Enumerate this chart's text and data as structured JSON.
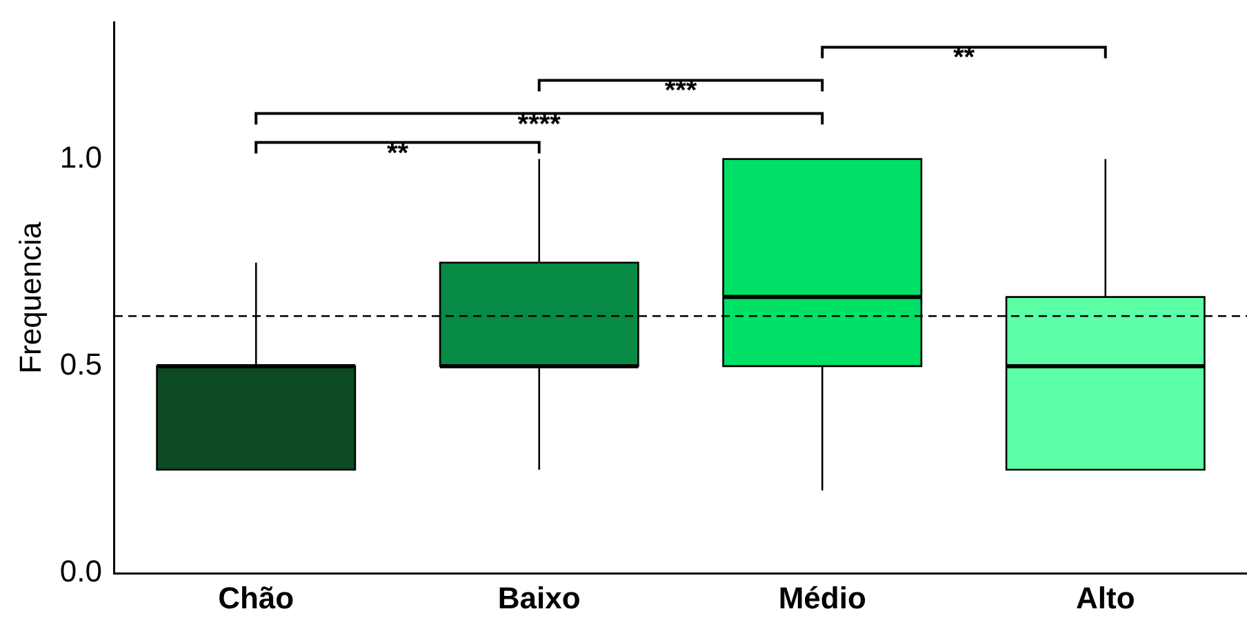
{
  "chart_data": {
    "type": "box",
    "ylabel": "Frequencia",
    "categories": [
      "Chão",
      "Baixo",
      "Médio",
      "Alto"
    ],
    "colors": [
      "#0b4a22",
      "#078a44",
      "#00e066",
      "#5cffa8"
    ],
    "boxes": [
      {
        "low": 0.25,
        "q1": 0.25,
        "median": 0.5,
        "q3": 0.5,
        "high": 0.75
      },
      {
        "low": 0.25,
        "q1": 0.5,
        "median": 0.5,
        "q3": 0.75,
        "high": 1.0
      },
      {
        "low": 0.2,
        "q1": 0.5,
        "median": 0.667,
        "q3": 1.0,
        "high": 1.0
      },
      {
        "low": 0.25,
        "q1": 0.25,
        "median": 0.5,
        "q3": 0.667,
        "high": 1.0
      }
    ],
    "ylim": [
      0,
      1.33
    ],
    "yticks": [
      {
        "value": 0,
        "label": "0.0"
      },
      {
        "value": 0.5,
        "label": "0.5"
      },
      {
        "value": 1,
        "label": "1.0"
      }
    ],
    "ref_lines": [
      {
        "axis": "y",
        "value": 0.621,
        "line_style": "dashed",
        "color": "#000000"
      }
    ],
    "annotations": [
      "**",
      "****",
      "***",
      "**"
    ],
    "grid": false,
    "legend": false
  }
}
